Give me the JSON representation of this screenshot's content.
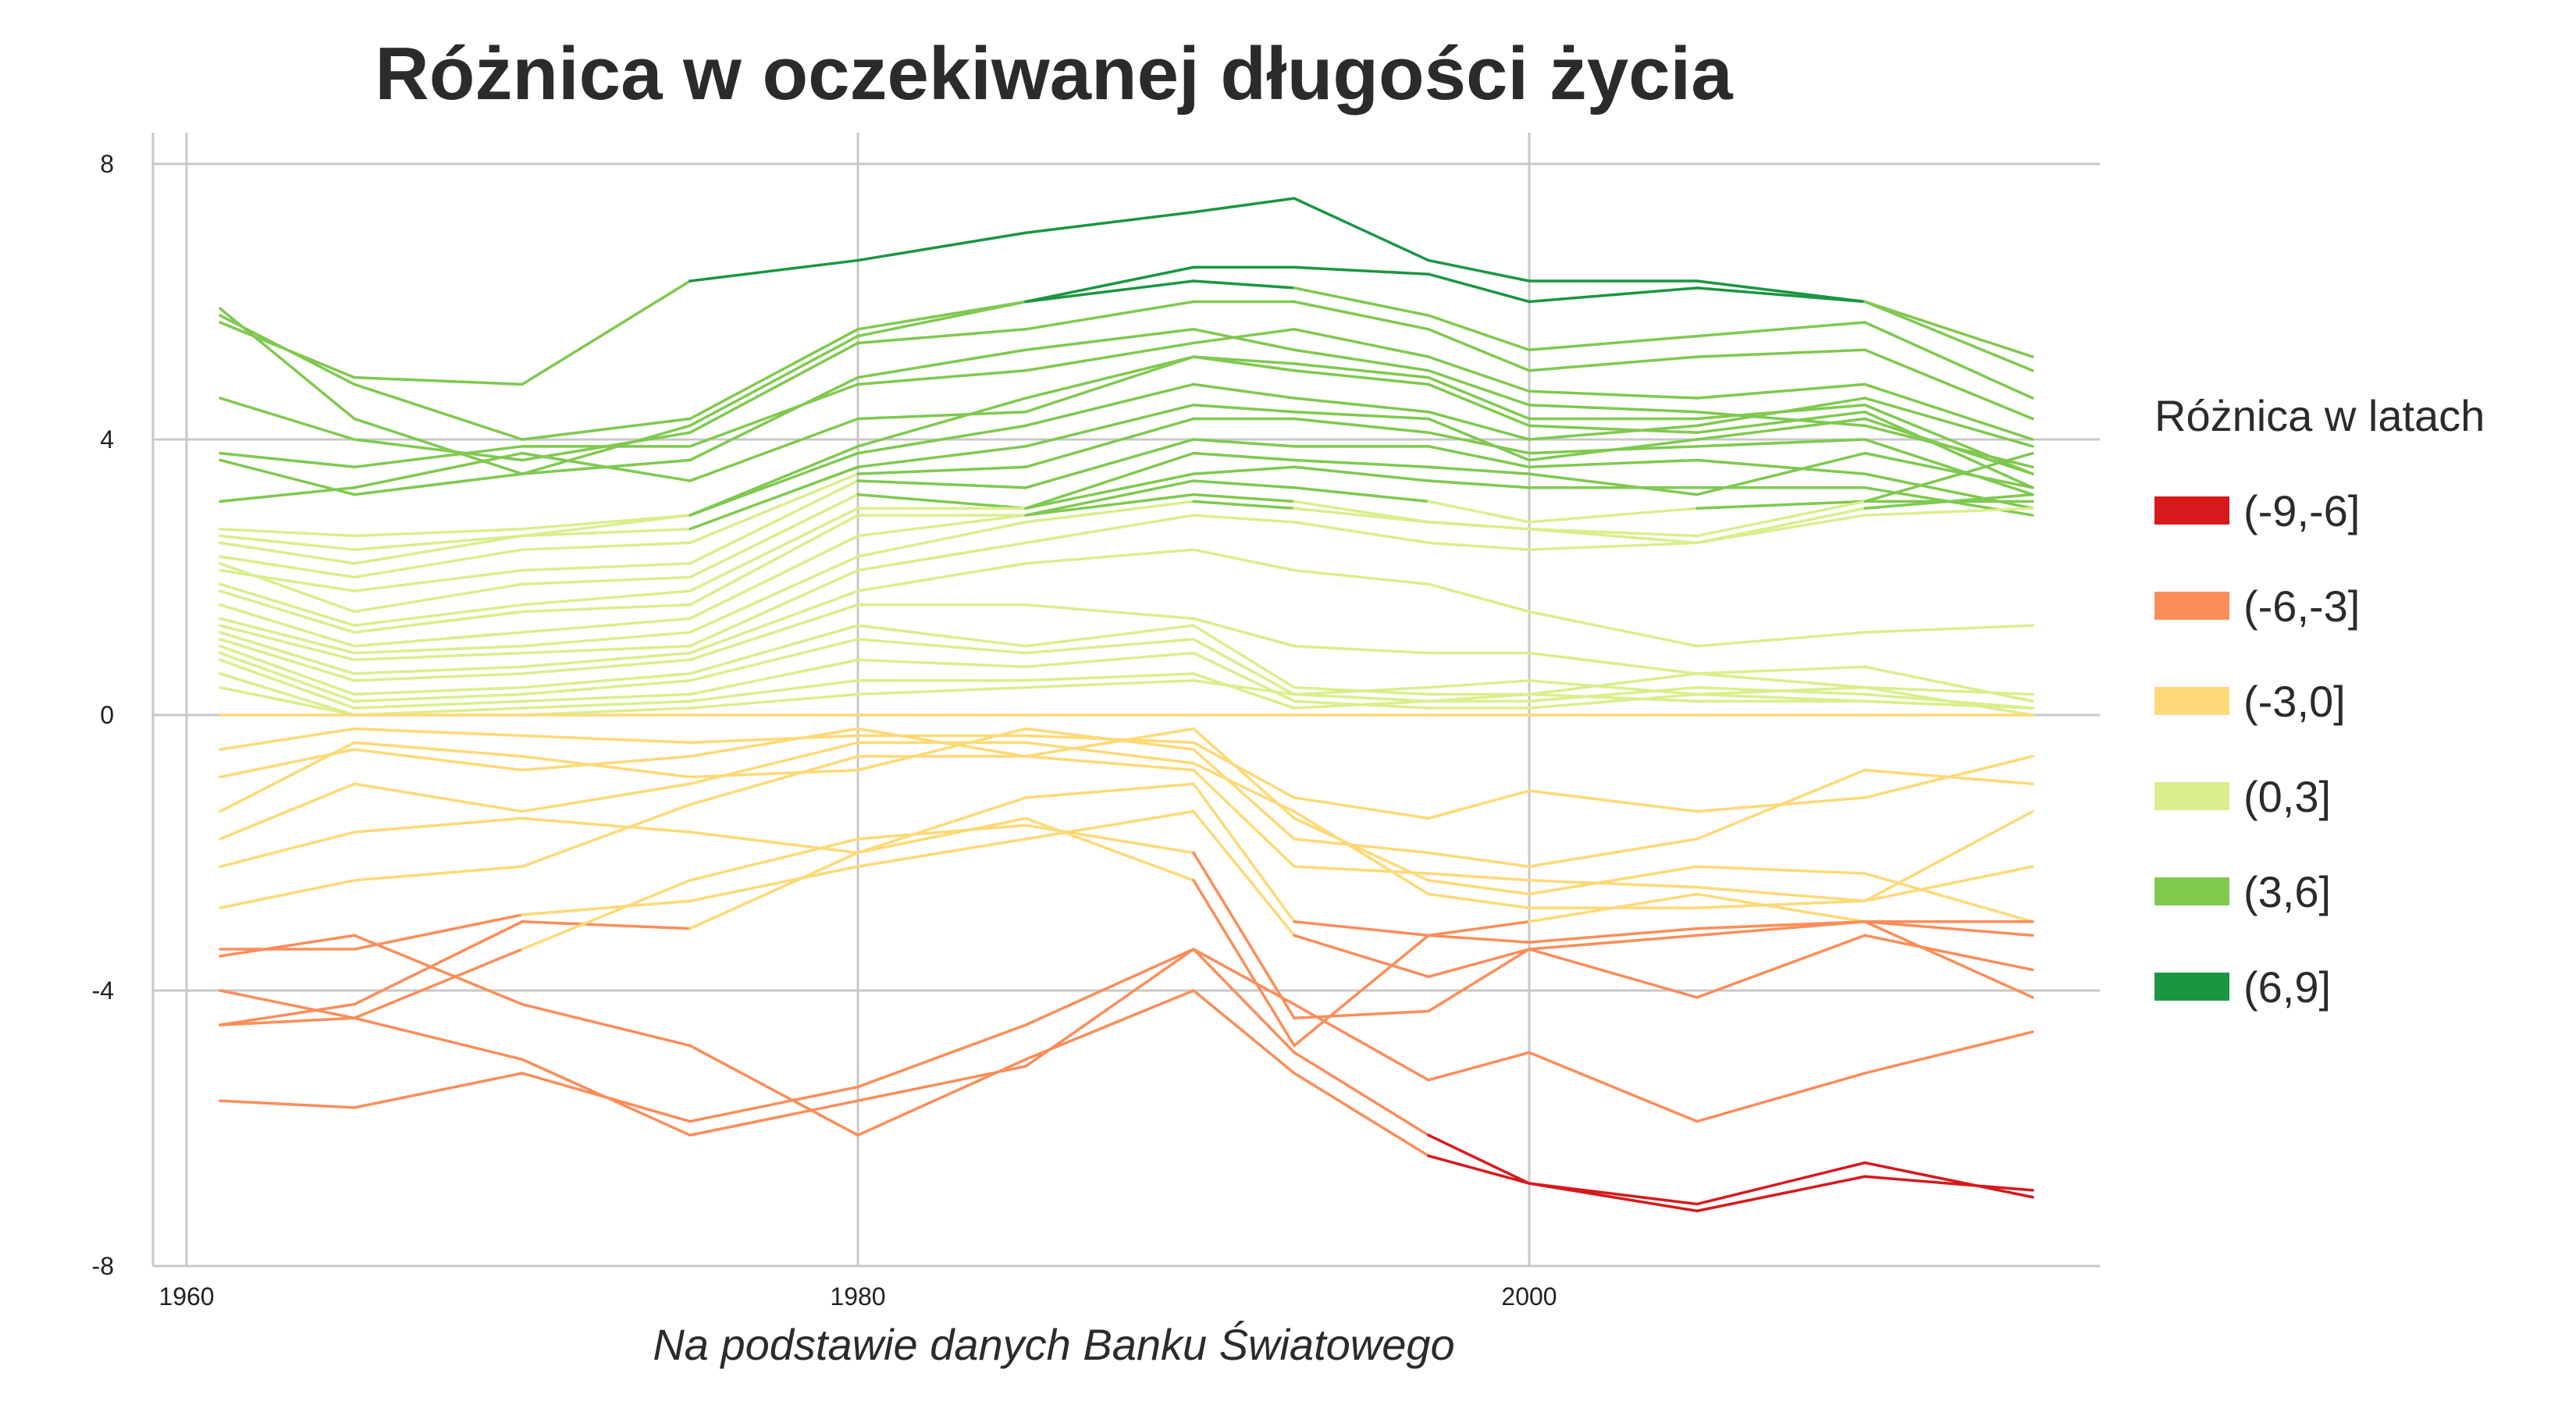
{
  "title": "Różnica w oczekiwanej długości życia",
  "caption": "Na podstawie danych Banku Światowego",
  "legend": {
    "title": "Różnica w latach",
    "items": [
      {
        "label": "(-9,-6]",
        "color": "#d7191c"
      },
      {
        "label": "(-6,-3]",
        "color": "#fc8d59"
      },
      {
        "label": "(-3,0]",
        "color": "#fed976"
      },
      {
        "label": "(0,3]",
        "color": "#d9ef8b"
      },
      {
        "label": "(3,6]",
        "color": "#7fc94f"
      },
      {
        "label": "(6,9]",
        "color": "#1a9641"
      }
    ]
  },
  "chart_data": {
    "type": "line",
    "title": "Różnica w oczekiwanej długości życia",
    "xlabel": "",
    "ylabel": "",
    "xlim": [
      1959,
      2017
    ],
    "ylim": [
      -8,
      8
    ],
    "x_ticks": [
      1960,
      1980,
      2000
    ],
    "y_ticks": [
      8,
      4,
      0,
      -4,
      -8
    ],
    "y_tick_labels": [
      "8",
      "4",
      "0",
      "-4",
      "-8"
    ],
    "grid": true,
    "legend_position": "right",
    "color_bins": [
      [
        -9,
        -6
      ],
      [
        -6,
        -3
      ],
      [
        -3,
        0
      ],
      [
        0,
        3
      ],
      [
        3,
        6
      ],
      [
        6,
        9
      ]
    ],
    "x": [
      1961,
      1965,
      1970,
      1975,
      1980,
      1985,
      1990,
      1993,
      1997,
      2000,
      2005,
      2010,
      2015
    ],
    "series": [
      {
        "values": [
          5.8,
          4.8,
          4.0,
          4.3,
          5.6,
          6.0,
          6.5,
          6.5,
          6.4,
          6.0,
          6.2,
          6.0,
          5.2
        ]
      },
      {
        "values": [
          5.7,
          4.9,
          4.8,
          6.3,
          6.6,
          7.0,
          7.3,
          7.5,
          6.6,
          6.3,
          6.3,
          6.0,
          5.0
        ]
      },
      {
        "values": [
          5.9,
          4.3,
          3.5,
          4.2,
          5.5,
          6.0,
          6.3,
          6.2,
          5.8,
          5.3,
          5.5,
          5.7,
          4.6
        ]
      },
      {
        "values": [
          4.6,
          4.0,
          3.7,
          4.1,
          5.4,
          5.6,
          6.0,
          6.0,
          5.6,
          5.0,
          5.2,
          5.3,
          4.3
        ]
      },
      {
        "values": [
          3.8,
          3.6,
          3.9,
          3.9,
          4.8,
          5.0,
          5.4,
          5.6,
          5.2,
          4.7,
          4.6,
          4.8,
          4.0
        ]
      },
      {
        "values": [
          3.1,
          3.3,
          3.8,
          3.4,
          4.3,
          4.4,
          5.2,
          5.1,
          4.9,
          4.3,
          4.3,
          4.5,
          3.5
        ]
      },
      {
        "values": [
          3.7,
          3.2,
          3.5,
          3.7,
          4.9,
          5.3,
          5.6,
          5.3,
          5.0,
          4.5,
          4.4,
          4.2,
          3.6
        ]
      },
      {
        "values": [
          2.7,
          2.6,
          2.7,
          2.9,
          3.9,
          4.6,
          5.2,
          5.0,
          4.8,
          4.2,
          4.1,
          4.4,
          3.3
        ]
      },
      {
        "values": [
          2.6,
          2.4,
          2.6,
          2.9,
          3.8,
          4.2,
          4.8,
          4.6,
          4.4,
          4.0,
          4.2,
          4.6,
          3.9
        ]
      },
      {
        "values": [
          2.5,
          2.2,
          2.6,
          2.7,
          3.6,
          3.9,
          4.5,
          4.4,
          4.3,
          3.7,
          4.0,
          4.3,
          3.5
        ]
      },
      {
        "values": [
          2.3,
          2.0,
          2.4,
          2.5,
          3.5,
          3.6,
          4.3,
          4.3,
          4.1,
          3.8,
          3.9,
          4.0,
          3.2
        ]
      },
      {
        "values": [
          2.1,
          1.8,
          2.1,
          2.2,
          3.4,
          3.3,
          4.0,
          3.9,
          3.9,
          3.6,
          3.7,
          3.5,
          3.0
        ]
      },
      {
        "values": [
          2.2,
          1.5,
          1.9,
          2.0,
          3.2,
          3.0,
          3.8,
          3.7,
          3.6,
          3.5,
          3.2,
          3.8,
          3.3
        ]
      },
      {
        "values": [
          1.9,
          1.3,
          1.6,
          1.8,
          3.0,
          3.0,
          3.5,
          3.6,
          3.4,
          3.3,
          3.3,
          3.3,
          2.9
        ]
      },
      {
        "values": [
          1.8,
          1.2,
          1.5,
          1.6,
          2.9,
          2.9,
          3.4,
          3.3,
          3.1,
          2.8,
          3.0,
          3.1,
          3.1
        ]
      },
      {
        "values": [
          1.6,
          1.0,
          1.2,
          1.4,
          2.6,
          2.9,
          3.2,
          3.1,
          2.8,
          2.7,
          2.6,
          3.1,
          3.8
        ]
      },
      {
        "values": [
          1.4,
          0.9,
          1.0,
          1.2,
          2.3,
          2.8,
          3.1,
          3.0,
          2.8,
          2.7,
          2.5,
          3.0,
          3.2
        ]
      },
      {
        "values": [
          1.3,
          0.8,
          0.9,
          1.0,
          2.1,
          2.5,
          2.9,
          2.8,
          2.5,
          2.4,
          2.5,
          2.9,
          3.0
        ]
      },
      {
        "values": [
          1.2,
          0.6,
          0.7,
          0.9,
          1.8,
          2.2,
          2.4,
          2.1,
          1.9,
          1.5,
          1.0,
          1.2,
          1.3
        ]
      },
      {
        "values": [
          1.1,
          0.5,
          0.6,
          0.8,
          1.6,
          1.6,
          1.4,
          1.0,
          0.9,
          0.9,
          0.6,
          0.7,
          0.2
        ]
      },
      {
        "values": [
          1.0,
          0.3,
          0.4,
          0.6,
          1.3,
          1.0,
          1.3,
          0.4,
          0.3,
          0.3,
          0.6,
          0.4,
          0.0
        ]
      },
      {
        "values": [
          0.9,
          0.2,
          0.3,
          0.5,
          1.1,
          0.9,
          1.1,
          0.3,
          0.2,
          0.2,
          0.4,
          0.3,
          0.1
        ]
      },
      {
        "values": [
          0.8,
          0.1,
          0.2,
          0.3,
          0.8,
          0.7,
          0.9,
          0.2,
          0.1,
          0.1,
          0.3,
          0.2,
          0.1
        ]
      },
      {
        "values": [
          0.6,
          0.0,
          0.1,
          0.2,
          0.5,
          0.5,
          0.6,
          0.1,
          0.2,
          0.3,
          0.2,
          0.2,
          0.1
        ]
      },
      {
        "values": [
          0.4,
          0.0,
          0.0,
          0.1,
          0.3,
          0.4,
          0.5,
          0.3,
          0.4,
          0.5,
          0.3,
          0.4,
          0.3
        ]
      },
      {
        "values": [
          0,
          0,
          0,
          0,
          0,
          0,
          0,
          0,
          0,
          0,
          0,
          0,
          0
        ]
      },
      {
        "values": [
          -1.4,
          -0.4,
          -0.6,
          -0.9,
          -0.8,
          -0.2,
          -0.5,
          -1.8,
          -2.0,
          -2.2,
          -1.8,
          -0.8,
          -1.0
        ]
      },
      {
        "values": [
          -2.8,
          -2.4,
          -2.2,
          -1.3,
          -0.6,
          -0.6,
          -0.8,
          -2.2,
          -2.3,
          -2.4,
          -2.5,
          -2.7,
          -2.2
        ]
      },
      {
        "values": [
          -1.8,
          -1.0,
          -1.4,
          -1.0,
          -0.4,
          -0.4,
          -0.7,
          -1.4,
          -2.6,
          -2.8,
          -2.8,
          -2.7,
          -1.4
        ]
      },
      {
        "values": [
          -0.5,
          -0.2,
          -0.3,
          -0.4,
          -0.3,
          -0.3,
          -0.4,
          -1.2,
          -1.5,
          -1.1,
          -1.4,
          -1.2,
          -0.6
        ]
      },
      {
        "values": [
          -0.9,
          -0.5,
          -0.8,
          -0.6,
          -0.2,
          -0.6,
          -0.2,
          -1.5,
          -2.4,
          -2.6,
          -2.2,
          -2.3,
          -3.0
        ]
      },
      {
        "values": [
          -2.2,
          -1.7,
          -1.5,
          -1.7,
          -2.0,
          -1.2,
          -1.0,
          -3.0,
          -3.2,
          -3.0,
          -2.6,
          -3.0,
          -3.2
        ]
      },
      {
        "values": [
          -3.4,
          -3.4,
          -2.9,
          -2.7,
          -2.2,
          -1.8,
          -1.4,
          -3.2,
          -3.8,
          -3.4,
          -3.2,
          -3.0,
          -3.0
        ]
      },
      {
        "values": [
          -4.5,
          -4.2,
          -3.0,
          -3.1,
          -2.0,
          -1.5,
          -2.4,
          -4.8,
          -3.2,
          -3.3,
          -3.1,
          -3.0,
          -4.1
        ]
      },
      {
        "values": [
          -4.5,
          -4.4,
          -3.4,
          -2.4,
          -1.8,
          -1.6,
          -2.0,
          -4.4,
          -4.3,
          -3.4,
          -4.1,
          -3.2,
          -3.7
        ]
      },
      {
        "values": [
          -5.6,
          -5.7,
          -5.2,
          -5.9,
          -5.4,
          -4.5,
          -3.4,
          -4.2,
          -5.3,
          -4.9,
          -5.9,
          -5.2,
          -4.6
        ]
      },
      {
        "values": [
          -4.0,
          -4.4,
          -5.0,
          -6.1,
          -5.6,
          -5.1,
          -3.4,
          -4.9,
          -6.1,
          -6.8,
          -7.2,
          -6.7,
          -6.9
        ]
      },
      {
        "values": [
          -3.5,
          -3.2,
          -4.2,
          -4.8,
          -6.1,
          -5.0,
          -4.0,
          -5.2,
          -6.4,
          -6.8,
          -7.1,
          -6.5,
          -7.0
        ]
      }
    ]
  }
}
